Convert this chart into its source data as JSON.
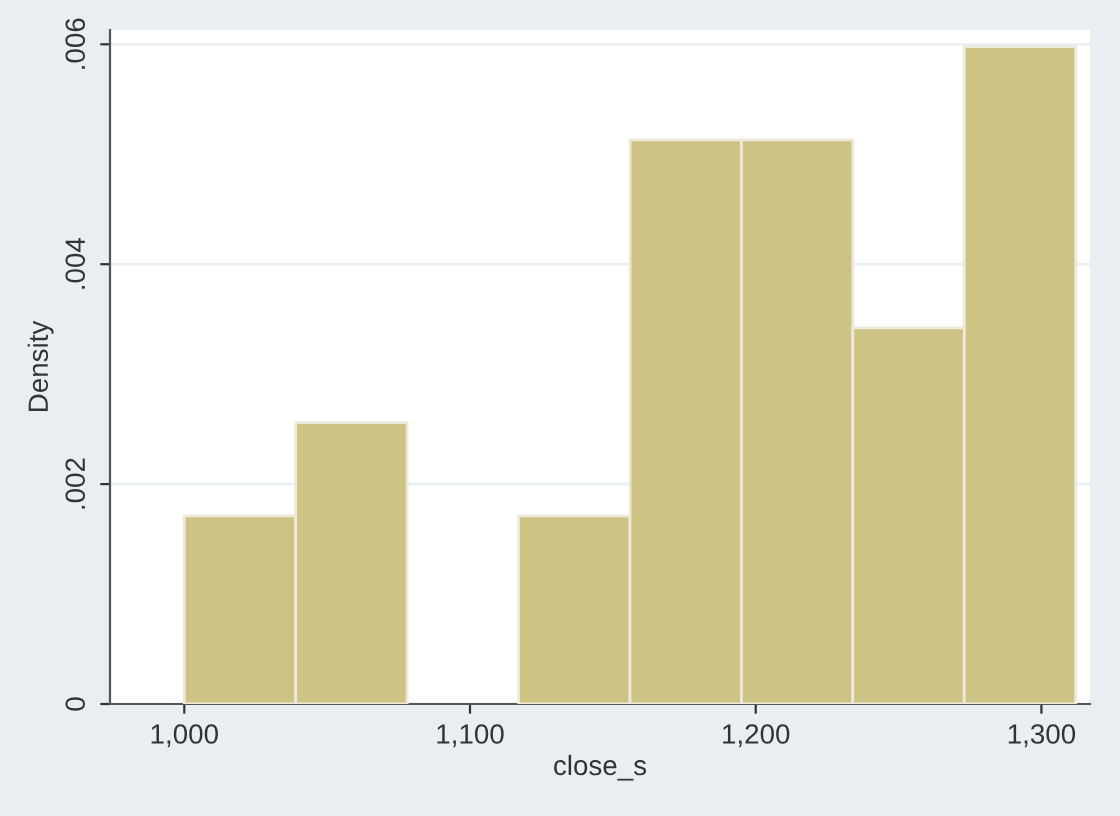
{
  "chart_data": {
    "type": "histogram",
    "xlabel": "close_s",
    "ylabel": "Density",
    "bins": [
      1000,
      1039,
      1078,
      1117,
      1156,
      1195,
      1234,
      1273,
      1312
    ],
    "values": [
      0.00171,
      0.00256,
      0,
      0.00171,
      0.00513,
      0.00513,
      0.00342,
      0.00598
    ],
    "color": "#cdc385",
    "xlim": [
      974,
      1317
    ],
    "ylim": [
      0,
      0.00613
    ],
    "xticks": [
      {
        "value": 1000,
        "label": "1,000"
      },
      {
        "value": 1100,
        "label": "1,100"
      },
      {
        "value": 1200,
        "label": "1,200"
      },
      {
        "value": 1300,
        "label": "1,300"
      }
    ],
    "yticks": [
      0,
      {
        "value": 0.002,
        "label": ".002"
      },
      {
        "value": 0.004,
        "label": ".004"
      },
      {
        "value": 0.006,
        "label": ".006"
      }
    ],
    "grid": "y",
    "legend": false
  }
}
